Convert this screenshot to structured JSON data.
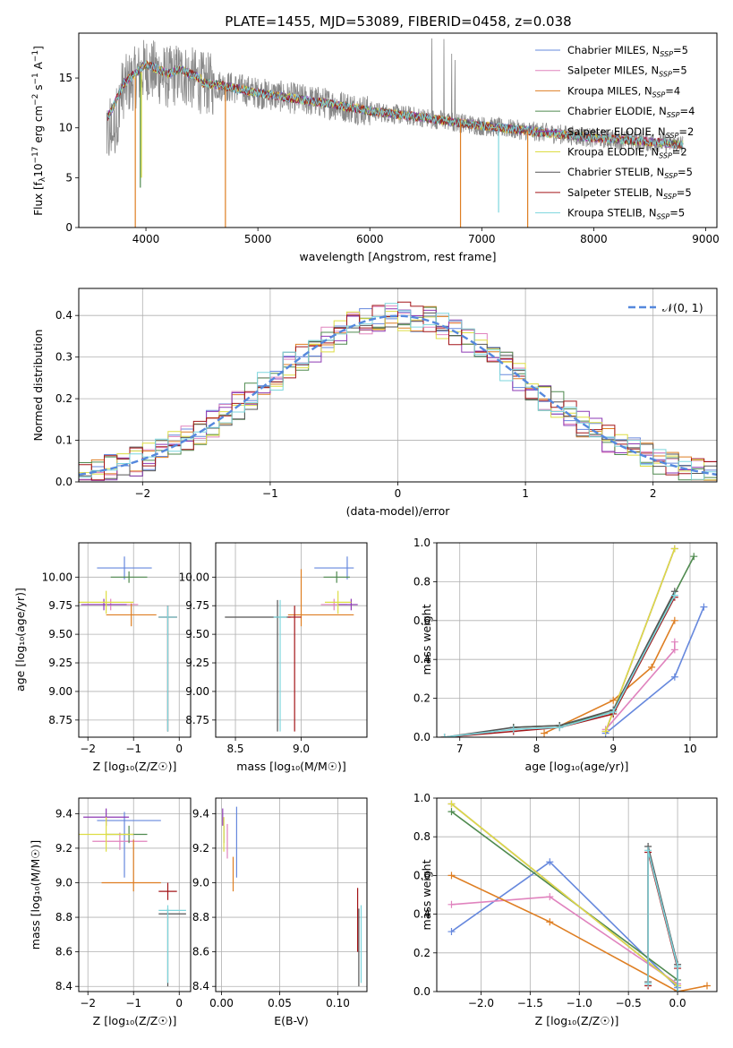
{
  "title": "PLATE=1455, MJD=53089, FIBERID=0458, z=0.038",
  "colors": {
    "chabrier_miles": "#6688dd",
    "salpeter_miles": "#e083be",
    "kroupa_miles": "#de7e22",
    "chabrier_elodie": "#4f8a4f",
    "salpeter_elodie": "#8e3ab4",
    "kroupa_elodie": "#dddd44",
    "chabrier_stelib": "#555555",
    "salpeter_stelib": "#a31518",
    "kroupa_stelib": "#7dd6dd",
    "data": "#888888",
    "normal_curve": "#5588dd"
  },
  "chart_data": [
    {
      "id": "spectrum",
      "type": "line",
      "title": "PLATE=1455, MJD=53089, FIBERID=0458, z=0.038",
      "xlabel": "wavelength [Angstrom, rest frame]",
      "ylabel": "Flux [f_λ 10^-17 erg cm^-2 s^-1 A^-1]",
      "xlim": [
        3400,
        9100
      ],
      "ylim": [
        0,
        19.5
      ],
      "xticks": [
        "4000",
        "5000",
        "6000",
        "7000",
        "8000",
        "9000"
      ],
      "yticks": [
        "0",
        "5",
        "10",
        "15"
      ],
      "grid": false,
      "legend_position": "top-right",
      "legend": [
        {
          "key": "chabrier_miles",
          "text": "Chabrier MILES, N",
          "sub": "SSP",
          "val": "=5"
        },
        {
          "key": "salpeter_miles",
          "text": "Salpeter MILES, N",
          "sub": "SSP",
          "val": "=5"
        },
        {
          "key": "kroupa_miles",
          "text": "Kroupa MILES, N",
          "sub": "SSP",
          "val": "=4"
        },
        {
          "key": "chabrier_elodie",
          "text": "Chabrier ELODIE, N",
          "sub": "SSP",
          "val": "=4"
        },
        {
          "key": "salpeter_elodie",
          "text": "Salpeter ELODIE, N",
          "sub": "SSP",
          "val": "=2"
        },
        {
          "key": "kroupa_elodie",
          "text": "Kroupa ELODIE, N",
          "sub": "SSP",
          "val": "=2"
        },
        {
          "key": "chabrier_stelib",
          "text": "Chabrier STELIB, N",
          "sub": "SSP",
          "val": "=5"
        },
        {
          "key": "salpeter_stelib",
          "text": "Salpeter STELIB, N",
          "sub": "SSP",
          "val": "=5"
        },
        {
          "key": "kroupa_stelib",
          "text": "Kroupa STELIB, N",
          "sub": "SSP",
          "val": "=5"
        }
      ],
      "continuum": {
        "x": [
          3650,
          3700,
          3800,
          3900,
          4000,
          4100,
          4200,
          4300,
          4400,
          4500,
          4700,
          5000,
          5300,
          5600,
          6000,
          6500,
          7000,
          7500,
          8000,
          8500,
          8800
        ],
        "y": [
          10.5,
          11.5,
          14.0,
          15.0,
          16.0,
          15.5,
          15.0,
          15.5,
          15.0,
          14.5,
          14.2,
          13.5,
          13.0,
          12.5,
          11.7,
          11.0,
          10.2,
          9.6,
          9.0,
          8.6,
          8.3
        ]
      },
      "dips": [
        {
          "series": "kroupa_miles",
          "x": 3905,
          "y": 0
        },
        {
          "series": "chabrier_elodie",
          "x": 3950,
          "y": 4.0
        },
        {
          "series": "kroupa_elodie",
          "x": 3960,
          "y": 5.0
        },
        {
          "series": "kroupa_miles",
          "x": 4710,
          "y": 0
        },
        {
          "series": "kroupa_miles",
          "x": 6810,
          "y": 0
        },
        {
          "series": "kroupa_stelib",
          "x": 7150,
          "y": 1.5
        },
        {
          "series": "kroupa_miles",
          "x": 7410,
          "y": 0
        }
      ]
    },
    {
      "id": "residuals",
      "type": "histogram",
      "xlabel": "(data-model)/error",
      "ylabel": "Normed distribution",
      "xlim": [
        -2.5,
        2.5
      ],
      "ylim": [
        0,
        0.465
      ],
      "xticks": [
        "−2",
        "−1",
        "0",
        "1",
        "2"
      ],
      "yticks": [
        "0.0",
        "0.1",
        "0.2",
        "0.3",
        "0.4"
      ],
      "grid": true,
      "legend_position": "top-right",
      "legend": [
        {
          "key": "normal_curve",
          "text": "𝒩(0, 1)"
        }
      ],
      "bin_width": 0.1,
      "series_keys": [
        "chabrier_miles",
        "salpeter_miles",
        "kroupa_miles",
        "chabrier_elodie",
        "salpeter_elodie",
        "kroupa_elodie",
        "chabrier_stelib",
        "salpeter_stelib",
        "kroupa_stelib"
      ]
    },
    {
      "id": "age_vs_Z",
      "type": "errorbar",
      "xlabel": "Z [log₁₀(Z/Z☉)]",
      "ylabel": "age  [log₁₀(age/yr)]",
      "xlim": [
        -2.2,
        0.25
      ],
      "ylim": [
        8.6,
        10.3
      ],
      "xticks": [
        "−2",
        "−1",
        "0"
      ],
      "yticks": [
        "8.75",
        "9.00",
        "9.25",
        "9.50",
        "9.75",
        "10.00"
      ],
      "grid": true,
      "points": [
        {
          "s": "chabrier_miles",
          "x": -1.2,
          "xerr": [
            0.6,
            0.6
          ],
          "y": 10.08,
          "yerr": [
            0.1,
            0.1
          ]
        },
        {
          "s": "salpeter_miles",
          "x": -1.5,
          "xerr": [
            0.6,
            0.6
          ],
          "y": 9.76,
          "yerr": [
            0.05,
            0.05
          ]
        },
        {
          "s": "kroupa_miles",
          "x": -1.05,
          "xerr": [
            0.55,
            0.55
          ],
          "y": 9.67,
          "yerr": [
            0.1,
            0.1
          ]
        },
        {
          "s": "chabrier_elodie",
          "x": -1.1,
          "xerr": [
            0.4,
            0.4
          ],
          "y": 10.0,
          "yerr": [
            0.05,
            0.05
          ]
        },
        {
          "s": "salpeter_elodie",
          "x": -1.65,
          "xerr": [
            0.5,
            0.5
          ],
          "y": 9.76,
          "yerr": [
            0.05,
            0.05
          ]
        },
        {
          "s": "kroupa_elodie",
          "x": -1.6,
          "xerr": [
            0.6,
            0.6
          ],
          "y": 9.78,
          "yerr": [
            0.1,
            0.1
          ]
        },
        {
          "s": "chabrier_stelib",
          "x": -0.25,
          "xerr": [
            0.2,
            0.2
          ],
          "y": 9.65,
          "yerr": [
            1.0,
            0.1
          ]
        },
        {
          "s": "salpeter_stelib",
          "x": -0.25,
          "xerr": [
            0.2,
            0.2
          ],
          "y": 9.65,
          "yerr": [
            1.0,
            0.1
          ]
        },
        {
          "s": "kroupa_stelib",
          "x": -0.25,
          "xerr": [
            0.2,
            0.2
          ],
          "y": 9.65,
          "yerr": [
            1.0,
            0.1
          ]
        }
      ]
    },
    {
      "id": "age_vs_mass",
      "type": "errorbar",
      "xlabel": "mass [log₁₀(M/M☉)]",
      "ylabel": "",
      "xlim": [
        8.35,
        9.5
      ],
      "ylim": [
        8.6,
        10.3
      ],
      "xticks": [
        "8.5",
        "9.0"
      ],
      "yticks": [
        "8.75",
        "9.00",
        "9.25",
        "9.50",
        "9.75",
        "10.00"
      ],
      "grid": true,
      "points": [
        {
          "s": "chabrier_miles",
          "x": 9.35,
          "xerr": [
            0.25,
            0.05
          ],
          "y": 10.08,
          "yerr": [
            0.1,
            0.1
          ]
        },
        {
          "s": "salpeter_miles",
          "x": 9.25,
          "xerr": [
            0.1,
            0.1
          ],
          "y": 9.76,
          "yerr": [
            0.05,
            0.05
          ]
        },
        {
          "s": "kroupa_miles",
          "x": 9.0,
          "xerr": [
            0.1,
            0.4
          ],
          "y": 9.67,
          "yerr": [
            0.1,
            0.4
          ]
        },
        {
          "s": "chabrier_elodie",
          "x": 9.27,
          "xerr": [
            0.1,
            0.1
          ],
          "y": 10.0,
          "yerr": [
            0.05,
            0.05
          ]
        },
        {
          "s": "salpeter_elodie",
          "x": 9.38,
          "xerr": [
            0.1,
            0.05
          ],
          "y": 9.76,
          "yerr": [
            0.05,
            0.05
          ]
        },
        {
          "s": "kroupa_elodie",
          "x": 9.28,
          "xerr": [
            0.1,
            0.1
          ],
          "y": 9.78,
          "yerr": [
            0.1,
            0.1
          ]
        },
        {
          "s": "chabrier_stelib",
          "x": 8.82,
          "xerr": [
            0.4,
            0.1
          ],
          "y": 9.65,
          "yerr": [
            1.0,
            0.15
          ]
        },
        {
          "s": "salpeter_stelib",
          "x": 8.95,
          "xerr": [
            0.05,
            0.05
          ],
          "y": 9.65,
          "yerr": [
            1.0,
            0.1
          ]
        },
        {
          "s": "kroupa_stelib",
          "x": 8.84,
          "xerr": [
            0.05,
            0.05
          ],
          "y": 9.65,
          "yerr": [
            1.0,
            0.15
          ]
        }
      ]
    },
    {
      "id": "massweight_vs_age",
      "type": "line",
      "xlabel": "age  [log₁₀(age/yr)]",
      "ylabel": "mass weight",
      "xlim": [
        6.7,
        10.35
      ],
      "ylim": [
        0,
        1.0
      ],
      "xticks": [
        "7",
        "8",
        "9",
        "10"
      ],
      "yticks": [
        "0.0",
        "0.2",
        "0.4",
        "0.6",
        "0.8",
        "1.0"
      ],
      "grid": true,
      "series": [
        {
          "s": "chabrier_miles",
          "x": [
            8.9,
            9.8,
            10.18
          ],
          "y": [
            0.02,
            0.31,
            0.67
          ]
        },
        {
          "s": "salpeter_miles",
          "x": [
            8.9,
            9.8,
            9.8
          ],
          "y": [
            0.04,
            0.45,
            0.49
          ]
        },
        {
          "s": "kroupa_miles",
          "x": [
            8.1,
            9.0,
            9.5,
            9.8
          ],
          "y": [
            0.02,
            0.19,
            0.36,
            0.6
          ]
        },
        {
          "s": "chabrier_elodie",
          "x": [
            7.7,
            8.3,
            9.0,
            10.05
          ],
          "y": [
            0.05,
            0.06,
            0.13,
            0.93
          ]
        },
        {
          "s": "salpeter_elodie",
          "x": [
            8.9,
            9.8
          ],
          "y": [
            0.03,
            0.97
          ]
        },
        {
          "s": "kroupa_elodie",
          "x": [
            8.9,
            9.8
          ],
          "y": [
            0.03,
            0.97
          ]
        },
        {
          "s": "chabrier_stelib",
          "x": [
            6.8,
            7.7,
            8.3,
            9.0,
            9.8
          ],
          "y": [
            0.0,
            0.05,
            0.06,
            0.14,
            0.75
          ]
        },
        {
          "s": "salpeter_stelib",
          "x": [
            6.8,
            7.7,
            8.3,
            9.0,
            9.8
          ],
          "y": [
            0.0,
            0.03,
            0.05,
            0.12,
            0.72
          ]
        },
        {
          "s": "kroupa_stelib",
          "x": [
            6.8,
            7.7,
            8.3,
            9.0,
            9.8
          ],
          "y": [
            0.0,
            0.04,
            0.05,
            0.13,
            0.73
          ]
        }
      ]
    },
    {
      "id": "mass_vs_Z",
      "type": "errorbar",
      "xlabel": "Z [log₁₀(Z/Z☉)]",
      "ylabel": "mass [log₁₀(M/M☉)]",
      "xlim": [
        -2.2,
        0.25
      ],
      "ylim": [
        8.37,
        9.49
      ],
      "xticks": [
        "−2",
        "−1",
        "0"
      ],
      "yticks": [
        "8.4",
        "8.6",
        "8.8",
        "9.0",
        "9.2",
        "9.4"
      ],
      "grid": true,
      "points": [
        {
          "s": "chabrier_miles",
          "x": -1.2,
          "xerr": [
            0.6,
            0.8
          ],
          "y": 9.36,
          "yerr": [
            0.33,
            0.05
          ]
        },
        {
          "s": "salpeter_miles",
          "x": -1.3,
          "xerr": [
            0.6,
            0.6
          ],
          "y": 9.24,
          "yerr": [
            0.05,
            0.05
          ]
        },
        {
          "s": "kroupa_miles",
          "x": -1.0,
          "xerr": [
            0.7,
            0.6
          ],
          "y": 9.0,
          "yerr": [
            0.05,
            0.25
          ]
        },
        {
          "s": "chabrier_elodie",
          "x": -1.1,
          "xerr": [
            0.5,
            0.4
          ],
          "y": 9.28,
          "yerr": [
            0.05,
            0.05
          ]
        },
        {
          "s": "salpeter_elodie",
          "x": -1.6,
          "xerr": [
            0.5,
            0.5
          ],
          "y": 9.38,
          "yerr": [
            0.05,
            0.05
          ]
        },
        {
          "s": "kroupa_elodie",
          "x": -1.6,
          "xerr": [
            0.6,
            0.6
          ],
          "y": 9.28,
          "yerr": [
            0.1,
            0.1
          ]
        },
        {
          "s": "chabrier_stelib",
          "x": -0.25,
          "xerr": [
            0.2,
            0.4
          ],
          "y": 8.82,
          "yerr": [
            0.42,
            0.03
          ]
        },
        {
          "s": "salpeter_stelib",
          "x": -0.25,
          "xerr": [
            0.2,
            0.2
          ],
          "y": 8.95,
          "yerr": [
            0.05,
            0.05
          ]
        },
        {
          "s": "kroupa_stelib",
          "x": -0.25,
          "xerr": [
            0.2,
            0.4
          ],
          "y": 8.84,
          "yerr": [
            0.42,
            0.03
          ]
        }
      ]
    },
    {
      "id": "mass_vs_ebv",
      "type": "errorbar",
      "xlabel": "E(B-V)",
      "ylabel": "",
      "xlim": [
        -0.005,
        0.125
      ],
      "ylim": [
        8.37,
        9.49
      ],
      "xticks": [
        "0.00",
        "0.05",
        "0.10"
      ],
      "yticks": [
        "8.4",
        "8.6",
        "8.8",
        "9.0",
        "9.2",
        "9.4"
      ],
      "grid": true,
      "points": [
        {
          "s": "chabrier_miles",
          "x": 0.013,
          "y": 9.36,
          "yerr": [
            0.33,
            0.08
          ]
        },
        {
          "s": "salpeter_miles",
          "x": 0.005,
          "y": 9.24,
          "yerr": [
            0.1,
            0.1
          ]
        },
        {
          "s": "kroupa_miles",
          "x": 0.01,
          "y": 9.0,
          "yerr": [
            0.05,
            0.15
          ]
        },
        {
          "s": "chabrier_elodie",
          "x": 0.002,
          "y": 9.28,
          "yerr": [
            0.05,
            0.05
          ]
        },
        {
          "s": "salpeter_elodie",
          "x": 0.001,
          "y": 9.38,
          "yerr": [
            0.05,
            0.05
          ]
        },
        {
          "s": "kroupa_elodie",
          "x": 0.002,
          "y": 9.28,
          "yerr": [
            0.1,
            0.1
          ]
        },
        {
          "s": "chabrier_stelib",
          "x": 0.118,
          "y": 8.82,
          "yerr": [
            0.42,
            0.03
          ]
        },
        {
          "s": "salpeter_stelib",
          "x": 0.117,
          "y": 8.8,
          "yerr": [
            0.2,
            0.17
          ]
        },
        {
          "s": "kroupa_stelib",
          "x": 0.12,
          "y": 8.84,
          "yerr": [
            0.42,
            0.03
          ]
        }
      ]
    },
    {
      "id": "massweight_vs_Z",
      "type": "line",
      "xlabel": "Z [log₁₀(Z/Z☉)]",
      "ylabel": "mass weight",
      "xlim": [
        -2.45,
        0.4
      ],
      "ylim": [
        0,
        1.0
      ],
      "xticks": [
        "−2.0",
        "−1.5",
        "−1.0",
        "−0.5",
        "0.0"
      ],
      "yticks": [
        "0.0",
        "0.2",
        "0.4",
        "0.6",
        "0.8",
        "1.0"
      ],
      "grid": true,
      "series": [
        {
          "s": "chabrier_miles",
          "x": [
            -2.3,
            -1.3,
            0.0
          ],
          "y": [
            0.31,
            0.67,
            0.02
          ]
        },
        {
          "s": "salpeter_miles",
          "x": [
            -2.3,
            -1.3,
            0.0
          ],
          "y": [
            0.45,
            0.49,
            0.04
          ]
        },
        {
          "s": "kroupa_miles",
          "x": [
            -2.3,
            -1.3,
            0.0,
            0.3
          ],
          "y": [
            0.6,
            0.36,
            0.0,
            0.03
          ]
        },
        {
          "s": "chabrier_elodie",
          "x": [
            -2.3,
            0.0
          ],
          "y": [
            0.93,
            0.06
          ]
        },
        {
          "s": "salpeter_elodie",
          "x": [
            -2.3,
            0.0
          ],
          "y": [
            0.97,
            0.03
          ]
        },
        {
          "s": "kroupa_elodie",
          "x": [
            -2.3,
            0.0
          ],
          "y": [
            0.97,
            0.03
          ]
        },
        {
          "s": "chabrier_stelib",
          "x": [
            -0.3,
            -0.3,
            0.0,
            0.0
          ],
          "y": [
            0.05,
            0.75,
            0.14,
            0.0
          ]
        },
        {
          "s": "salpeter_stelib",
          "x": [
            -0.3,
            -0.3,
            0.0,
            0.0
          ],
          "y": [
            0.03,
            0.72,
            0.12,
            0.0
          ]
        },
        {
          "s": "kroupa_stelib",
          "x": [
            -0.3,
            -0.3,
            0.0,
            0.0
          ],
          "y": [
            0.04,
            0.73,
            0.13,
            0.0
          ]
        }
      ]
    }
  ]
}
